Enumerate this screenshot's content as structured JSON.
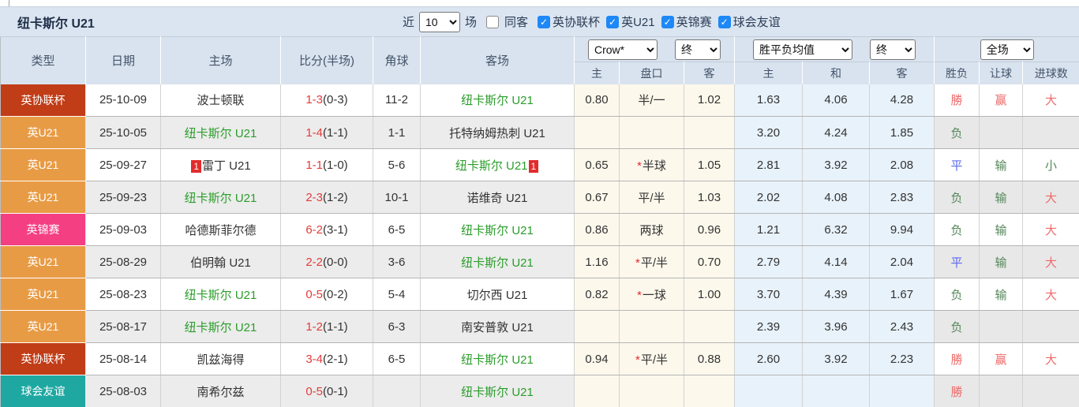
{
  "titlebar": {
    "team": "纽卡斯尔 U21",
    "near_label": "近",
    "matches_value": "10",
    "matches_unit": "场",
    "same_away_label": "同客",
    "same_away_checked": false,
    "filters": [
      {
        "label": "英协联杯",
        "checked": true
      },
      {
        "label": "英U21",
        "checked": true
      },
      {
        "label": "英锦赛",
        "checked": true
      },
      {
        "label": "球会友谊",
        "checked": true
      }
    ]
  },
  "header": {
    "cols": [
      "类型",
      "日期",
      "主场",
      "比分(半场)",
      "角球",
      "客场"
    ],
    "company_select": "Crow*",
    "time_select_1": "终",
    "avg_select": "胜平负均值",
    "time_select_2": "终",
    "scope_select": "全场",
    "subcols": [
      "主",
      "盘口",
      "客",
      "主",
      "和",
      "客",
      "胜负",
      "让球",
      "进球数"
    ]
  },
  "colors": {
    "league_cup": "#c13d17",
    "u21": "#e89b45",
    "trophy": "#f43f82",
    "friendly": "#1fa8a2",
    "team_highlight": "#2a9d2a",
    "score_red": "#e43b3b",
    "result_red": "#ee6b6b",
    "result_green": "#55875a",
    "result_blue": "#5a68ee"
  },
  "rows": [
    {
      "type": "英协联杯",
      "type_key": "league-cup",
      "date": "25-10-09",
      "home": "波士顿联",
      "home_green": false,
      "home_badge": "",
      "score_ft": "1-3",
      "score_ht": "(0-3)",
      "corner": "11-2",
      "away": "纽卡斯尔 U21",
      "away_green": true,
      "away_badge": "",
      "crow_home": "0.80",
      "handicap": "半/一",
      "handicap_star": false,
      "crow_away": "1.02",
      "avg_home": "1.63",
      "avg_draw": "4.06",
      "avg_away": "4.28",
      "outcome": "勝",
      "outcome_color": "red",
      "let_res": "赢",
      "let_color": "red",
      "goal_res": "大",
      "goal_color": "red"
    },
    {
      "type": "英U21",
      "type_key": "u21",
      "date": "25-10-05",
      "home": "纽卡斯尔 U21",
      "home_green": true,
      "home_badge": "",
      "score_ft": "1-4",
      "score_ht": "(1-1)",
      "corner": "1-1",
      "away": "托特纳姆热刺 U21",
      "away_green": false,
      "away_badge": "",
      "crow_home": "",
      "handicap": "",
      "handicap_star": false,
      "crow_away": "",
      "avg_home": "3.20",
      "avg_draw": "4.24",
      "avg_away": "1.85",
      "outcome": "负",
      "outcome_color": "green",
      "let_res": "",
      "let_color": "green",
      "goal_res": "",
      "goal_color": "red"
    },
    {
      "type": "英U21",
      "type_key": "u21",
      "date": "25-09-27",
      "home": "雷丁 U21",
      "home_green": false,
      "home_badge": "1",
      "score_ft": "1-1",
      "score_ht": "(1-0)",
      "corner": "5-6",
      "away": "纽卡斯尔 U21",
      "away_green": true,
      "away_badge": "1",
      "crow_home": "0.65",
      "handicap": "半球",
      "handicap_star": true,
      "crow_away": "1.05",
      "avg_home": "2.81",
      "avg_draw": "3.92",
      "avg_away": "2.08",
      "outcome": "平",
      "outcome_color": "blue",
      "let_res": "输",
      "let_color": "green",
      "goal_res": "小",
      "goal_color": "green"
    },
    {
      "type": "英U21",
      "type_key": "u21",
      "date": "25-09-23",
      "home": "纽卡斯尔 U21",
      "home_green": true,
      "home_badge": "",
      "score_ft": "2-3",
      "score_ht": "(1-2)",
      "corner": "10-1",
      "away": "诺维奇 U21",
      "away_green": false,
      "away_badge": "",
      "crow_home": "0.67",
      "handicap": "平/半",
      "handicap_star": false,
      "crow_away": "1.03",
      "avg_home": "2.02",
      "avg_draw": "4.08",
      "avg_away": "2.83",
      "outcome": "负",
      "outcome_color": "green",
      "let_res": "输",
      "let_color": "green",
      "goal_res": "大",
      "goal_color": "red"
    },
    {
      "type": "英锦赛",
      "type_key": "trophy",
      "date": "25-09-03",
      "home": "哈德斯菲尔德",
      "home_green": false,
      "home_badge": "",
      "score_ft": "6-2",
      "score_ht": "(3-1)",
      "corner": "6-5",
      "away": "纽卡斯尔 U21",
      "away_green": true,
      "away_badge": "",
      "crow_home": "0.86",
      "handicap": "两球",
      "handicap_star": false,
      "crow_away": "0.96",
      "avg_home": "1.21",
      "avg_draw": "6.32",
      "avg_away": "9.94",
      "outcome": "负",
      "outcome_color": "green",
      "let_res": "输",
      "let_color": "green",
      "goal_res": "大",
      "goal_color": "red"
    },
    {
      "type": "英U21",
      "type_key": "u21",
      "date": "25-08-29",
      "home": "伯明翰 U21",
      "home_green": false,
      "home_badge": "",
      "score_ft": "2-2",
      "score_ht": "(0-0)",
      "corner": "3-6",
      "away": "纽卡斯尔 U21",
      "away_green": true,
      "away_badge": "",
      "crow_home": "1.16",
      "handicap": "平/半",
      "handicap_star": true,
      "crow_away": "0.70",
      "avg_home": "2.79",
      "avg_draw": "4.14",
      "avg_away": "2.04",
      "outcome": "平",
      "outcome_color": "blue",
      "let_res": "输",
      "let_color": "green",
      "goal_res": "大",
      "goal_color": "red"
    },
    {
      "type": "英U21",
      "type_key": "u21",
      "date": "25-08-23",
      "home": "纽卡斯尔 U21",
      "home_green": true,
      "home_badge": "",
      "score_ft": "0-5",
      "score_ht": "(0-2)",
      "corner": "5-4",
      "away": "切尔西 U21",
      "away_green": false,
      "away_badge": "",
      "crow_home": "0.82",
      "handicap": "一球",
      "handicap_star": true,
      "crow_away": "1.00",
      "avg_home": "3.70",
      "avg_draw": "4.39",
      "avg_away": "1.67",
      "outcome": "负",
      "outcome_color": "green",
      "let_res": "输",
      "let_color": "green",
      "goal_res": "大",
      "goal_color": "red"
    },
    {
      "type": "英U21",
      "type_key": "u21",
      "date": "25-08-17",
      "home": "纽卡斯尔 U21",
      "home_green": true,
      "home_badge": "",
      "score_ft": "1-2",
      "score_ht": "(1-1)",
      "corner": "6-3",
      "away": "南安普敦 U21",
      "away_green": false,
      "away_badge": "",
      "crow_home": "",
      "handicap": "",
      "handicap_star": false,
      "crow_away": "",
      "avg_home": "2.39",
      "avg_draw": "3.96",
      "avg_away": "2.43",
      "outcome": "负",
      "outcome_color": "green",
      "let_res": "",
      "let_color": "green",
      "goal_res": "",
      "goal_color": "red"
    },
    {
      "type": "英协联杯",
      "type_key": "league-cup",
      "date": "25-08-14",
      "home": "凯兹海得",
      "home_green": false,
      "home_badge": "",
      "score_ft": "3-4",
      "score_ht": "(2-1)",
      "corner": "6-5",
      "away": "纽卡斯尔 U21",
      "away_green": true,
      "away_badge": "",
      "crow_home": "0.94",
      "handicap": "平/半",
      "handicap_star": true,
      "crow_away": "0.88",
      "avg_home": "2.60",
      "avg_draw": "3.92",
      "avg_away": "2.23",
      "outcome": "勝",
      "outcome_color": "red",
      "let_res": "赢",
      "let_color": "red",
      "goal_res": "大",
      "goal_color": "red"
    },
    {
      "type": "球会友谊",
      "type_key": "friendly",
      "date": "25-08-03",
      "home": "南希尔兹",
      "home_green": false,
      "home_badge": "",
      "score_ft": "0-5",
      "score_ht": "(0-1)",
      "corner": "",
      "away": "纽卡斯尔 U21",
      "away_green": true,
      "away_badge": "",
      "crow_home": "",
      "handicap": "",
      "handicap_star": false,
      "crow_away": "",
      "avg_home": "",
      "avg_draw": "",
      "avg_away": "",
      "outcome": "勝",
      "outcome_color": "red",
      "let_res": "",
      "let_color": "red",
      "goal_res": "",
      "goal_color": "red"
    }
  ]
}
